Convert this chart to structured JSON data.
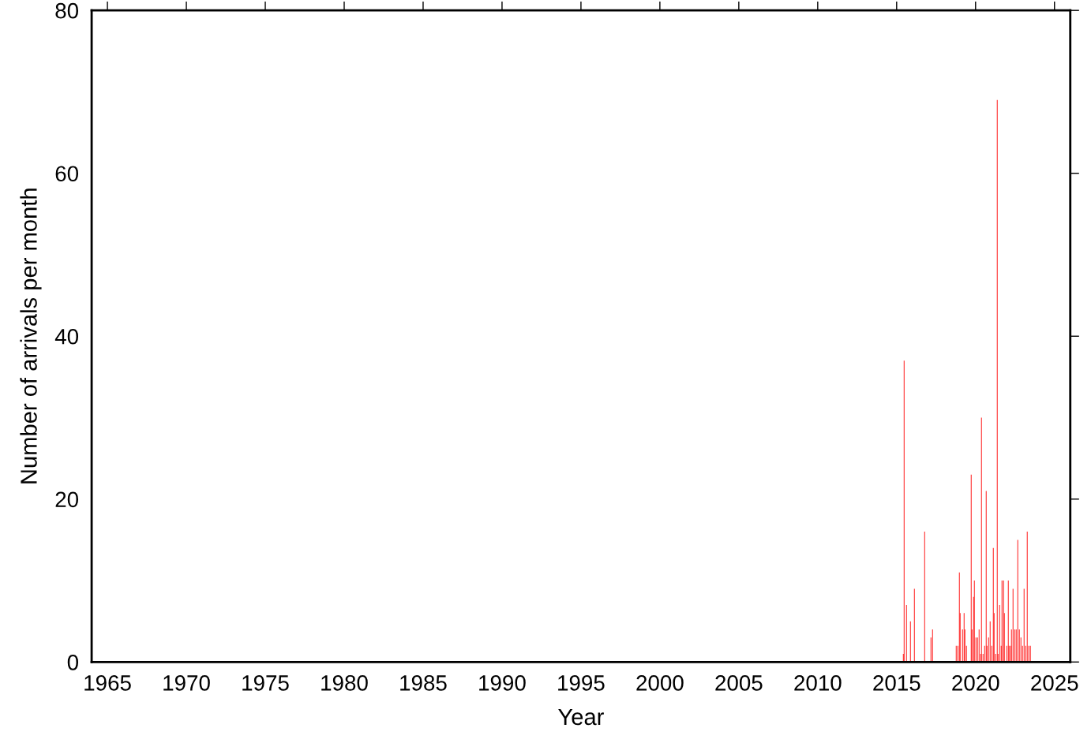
{
  "chart_data": {
    "type": "bar",
    "xlabel": "Year",
    "ylabel": "Number of arrivals per month",
    "color": "#ff0000",
    "x": [
      2015.4,
      2015.45,
      2015.6,
      2015.85,
      2016.1,
      2016.75,
      2017.15,
      2017.25,
      2018.75,
      2018.85,
      2018.95,
      2019.0,
      2019.15,
      2019.25,
      2019.3,
      2019.4,
      2019.7,
      2019.75,
      2019.85,
      2019.9,
      2020.0,
      2020.1,
      2020.2,
      2020.3,
      2020.35,
      2020.45,
      2020.55,
      2020.65,
      2020.7,
      2020.8,
      2020.9,
      2021.0,
      2021.1,
      2021.15,
      2021.25,
      2021.35,
      2021.4,
      2021.5,
      2021.6,
      2021.65,
      2021.75,
      2021.8,
      2021.95,
      2022.05,
      2022.1,
      2022.2,
      2022.25,
      2022.35,
      2022.45,
      2022.55,
      2022.65,
      2022.75,
      2022.85,
      2022.95,
      2023.05,
      2023.15,
      2023.25,
      2023.35,
      2023.45
    ],
    "values": [
      1,
      37,
      7,
      5,
      9,
      16,
      3,
      4,
      2,
      2,
      11,
      6,
      4,
      6,
      4,
      2,
      23,
      4,
      8,
      10,
      3,
      3,
      4,
      1,
      30,
      1,
      2,
      21,
      2,
      3,
      5,
      2,
      14,
      6,
      1,
      69,
      1,
      7,
      2,
      10,
      10,
      6,
      2,
      10,
      2,
      2,
      4,
      9,
      4,
      4,
      15,
      4,
      3,
      2,
      9,
      2,
      16,
      2,
      2
    ],
    "xlim": [
      1964,
      2026
    ],
    "xticks": [
      1965,
      1970,
      1975,
      1980,
      1985,
      1990,
      1995,
      2000,
      2005,
      2010,
      2015,
      2020,
      2025
    ],
    "ylim": [
      0,
      80
    ],
    "yticks": [
      0,
      20,
      40,
      60,
      80
    ],
    "grid": false
  }
}
